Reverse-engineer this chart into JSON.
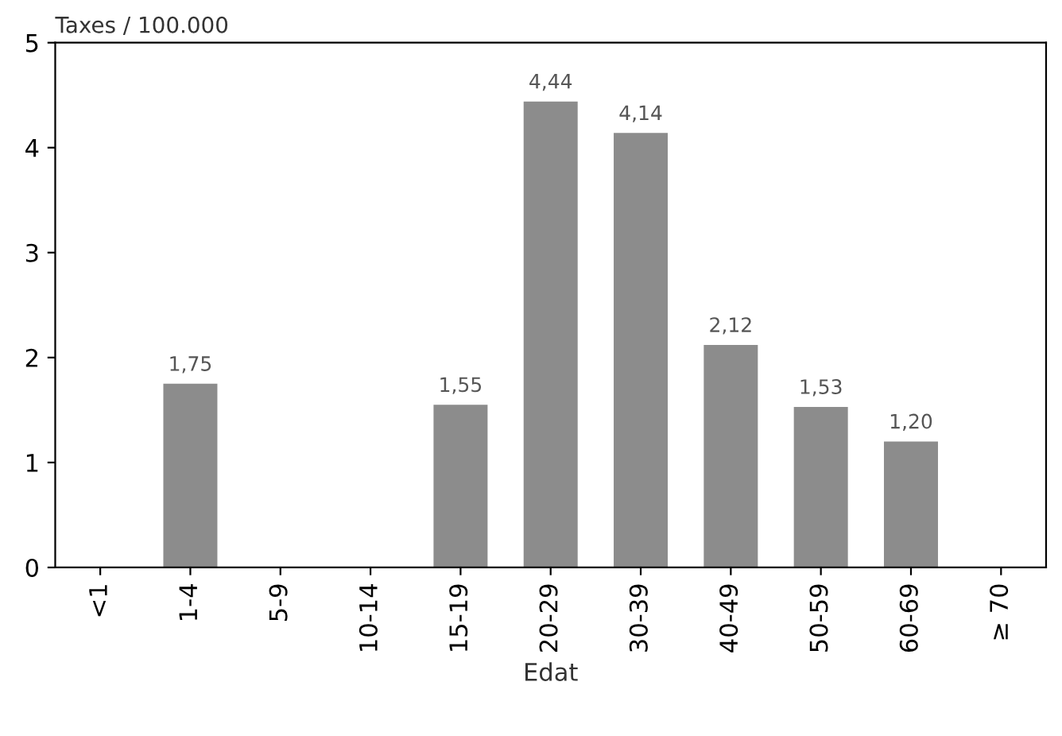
{
  "chart_data": {
    "type": "bar",
    "xlabel": "Edat",
    "ylabel": "Taxes / 100.000",
    "categories": [
      "<1",
      "1-4",
      "5-9",
      "10-14",
      "15-19",
      "20-29",
      "30-39",
      "40-49",
      "50-59",
      "60-69",
      "≥ 70"
    ],
    "values": [
      null,
      1.75,
      null,
      null,
      1.55,
      4.44,
      4.14,
      2.12,
      1.53,
      1.2,
      null
    ],
    "value_labels": [
      null,
      "1,75",
      null,
      null,
      "1,55",
      "4,44",
      "4,14",
      "2,12",
      "1,53",
      "1,20",
      null
    ],
    "color": "#8c8c8c",
    "ylim": [
      0,
      5
    ],
    "yticks": [
      0,
      1,
      2,
      3,
      4,
      5
    ],
    "grid": false
  }
}
